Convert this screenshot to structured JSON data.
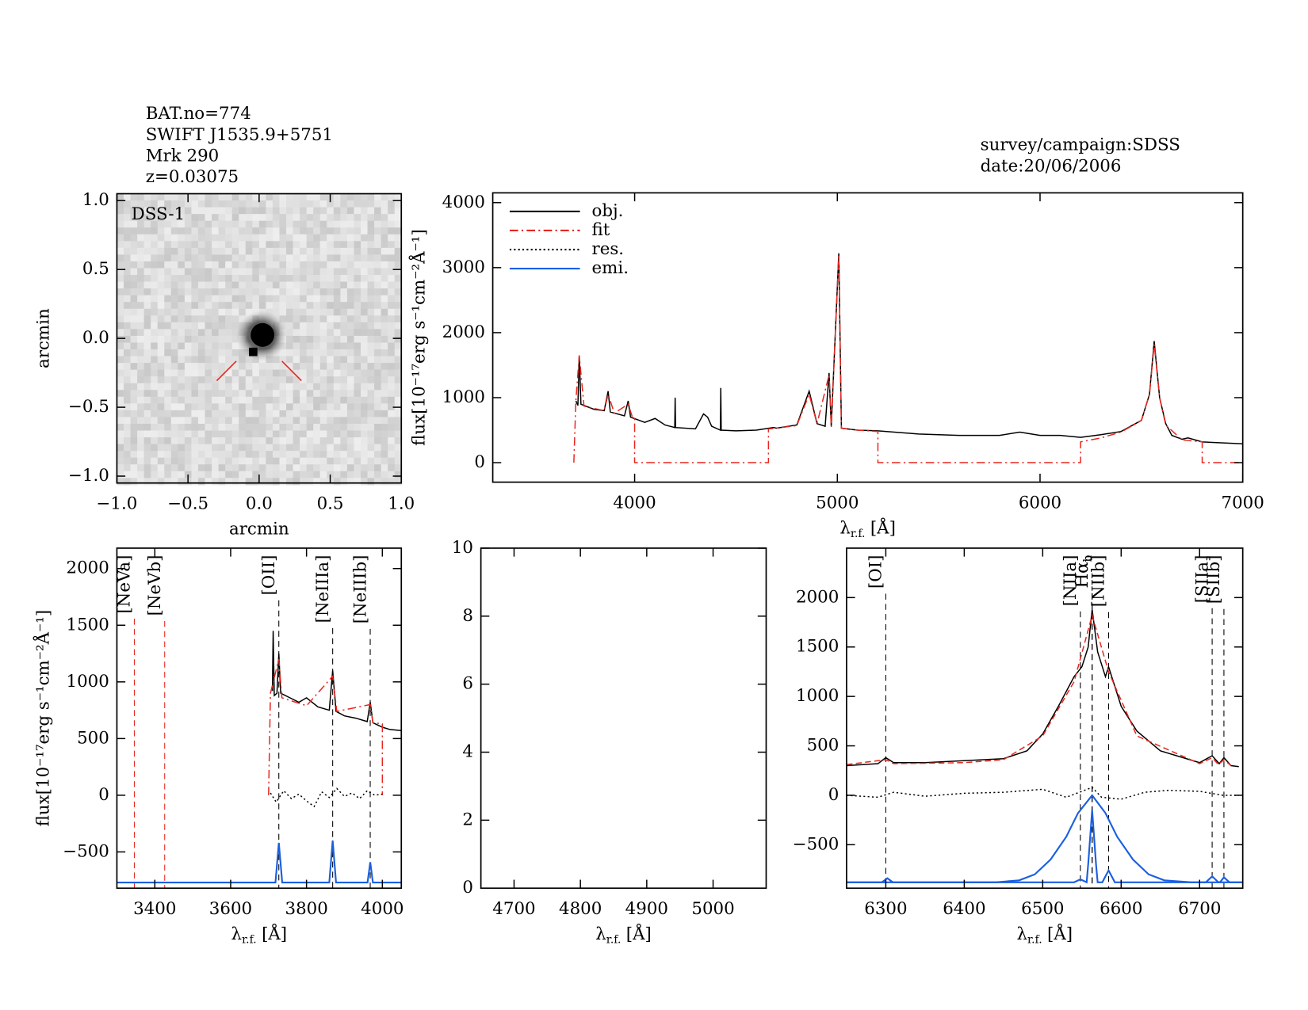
{
  "header": {
    "left": [
      "BAT.no=774",
      "SWIFT J1535.9+5751",
      "Mrk 290",
      "z=0.03075"
    ],
    "right": [
      "survey/campaign:SDSS",
      "date:20/06/2006"
    ]
  },
  "chart_data": [
    {
      "type": "image",
      "label": "DSS-1",
      "x_label": "arcmin",
      "y_label": "arcmin",
      "xlim": [
        -1.0,
        1.0
      ],
      "ylim": [
        -1.05,
        1.05
      ],
      "xticks": [
        {
          "value": -1,
          "label": "−1.0"
        },
        {
          "value": -0.5,
          "label": "−0.5"
        },
        {
          "value": 0,
          "label": "0.0"
        },
        0.5,
        {
          "value": 1,
          "label": "1.0"
        }
      ],
      "yticks": [
        {
          "value": -1,
          "label": "−1.0"
        },
        {
          "value": -0.5,
          "label": "−0.5"
        },
        {
          "value": 0,
          "label": "0.0"
        },
        0.5,
        {
          "value": 1,
          "label": "1.0"
        }
      ],
      "marker_color": "#e8261e"
    },
    {
      "type": "line",
      "y_label": "flux[10⁻¹⁷erg s⁻¹cm⁻²Å⁻¹]",
      "x_label": {
        "symbol": "λ",
        "sub": "r.f.",
        "unit": "[Å]"
      },
      "xlim": [
        3300,
        7000
      ],
      "ylim": [
        -300,
        4150
      ],
      "xticks": [
        4000,
        5000,
        6000,
        7000
      ],
      "yticks": [
        0,
        1000,
        2000,
        3000,
        4000
      ],
      "legend": [
        {
          "name": "obj.",
          "color": "#000000",
          "dash": "solid"
        },
        {
          "name": "fit",
          "color": "#e8261e",
          "dash": "dashdot"
        },
        {
          "name": "res.",
          "color": "#000000",
          "dash": "dotted"
        },
        {
          "name": "emi.",
          "color": "#1a5fe0",
          "dash": "solid"
        }
      ],
      "series": [
        {
          "color": "#000000",
          "dash": "solid",
          "x": [
            3710,
            3720,
            3727,
            3735,
            3750,
            3800,
            3850,
            3869,
            3880,
            3950,
            3968,
            3980,
            4050,
            4101,
            4150,
            4198,
            4200,
            4202,
            4300,
            4340,
            4360,
            4380,
            4423,
            4425,
            4427,
            4500,
            4600,
            4686,
            4700,
            4800,
            4861,
            4900,
            4940,
            4959,
            4970,
            5007,
            5020,
            5100,
            5200,
            5400,
            5600,
            5800,
            5900,
            6000,
            6100,
            6200,
            6300,
            6400,
            6500,
            6540,
            6563,
            6590,
            6620,
            6650,
            6700,
            6730,
            6800,
            7000
          ],
          "values": [
            950,
            880,
            1650,
            900,
            880,
            820,
            800,
            1100,
            780,
            720,
            950,
            700,
            620,
            680,
            580,
            540,
            1000,
            540,
            520,
            750,
            700,
            560,
            500,
            1150,
            500,
            490,
            500,
            540,
            530,
            580,
            1100,
            600,
            560,
            1380,
            560,
            3220,
            530,
            500,
            490,
            440,
            420,
            420,
            470,
            420,
            420,
            390,
            430,
            480,
            650,
            1050,
            1870,
            1000,
            600,
            420,
            360,
            380,
            320,
            290
          ]
        },
        {
          "color": "#e8261e",
          "dash": "dashdot",
          "x": [
            3700,
            3710,
            3727,
            3750,
            3850,
            3869,
            3900,
            3968,
            3990,
            4000,
            4000,
            4660,
            4660,
            4700,
            4800,
            4861,
            4900,
            4959,
            4970,
            5007,
            5020,
            5100,
            5200,
            5200,
            6200,
            6200,
            6300,
            6400,
            6500,
            6540,
            6563,
            6590,
            6620,
            6700,
            6800,
            6800,
            7000
          ],
          "values": [
            0,
            950,
            1650,
            870,
            800,
            1050,
            760,
            900,
            690,
            680,
            0,
            0,
            520,
            530,
            570,
            1050,
            600,
            1350,
            550,
            3200,
            530,
            500,
            480,
            0,
            0,
            320,
            380,
            470,
            650,
            1050,
            1820,
            1000,
            580,
            350,
            320,
            0,
            0
          ]
        }
      ]
    },
    {
      "type": "line",
      "y_label": "flux[10⁻¹⁷erg s⁻¹cm⁻²Å⁻¹]",
      "x_label": {
        "symbol": "λ",
        "sub": "r.f.",
        "unit": "[Å]"
      },
      "xlim": [
        3300,
        4050
      ],
      "ylim": [
        -820,
        2180
      ],
      "xticks": [
        3400,
        3600,
        3800,
        4000
      ],
      "yticks": [
        {
          "value": -500,
          "label": "−500"
        },
        0,
        500,
        1000,
        1500,
        2000
      ],
      "lines": [
        {
          "label": "[NeVa]",
          "x": 3346,
          "color": "#e8261e"
        },
        {
          "label": "[NeVb]",
          "x": 3426,
          "color": "#e8261e"
        },
        {
          "label": "[OII]",
          "x": 3727,
          "color": "#000000"
        },
        {
          "label": "[NeIIIa]",
          "x": 3869,
          "color": "#000000"
        },
        {
          "label": "[NeIIIb]",
          "x": 3968,
          "color": "#000000"
        }
      ],
      "series": [
        {
          "color": "#000000",
          "dash": "solid",
          "x": [
            3710,
            3712,
            3715,
            3722,
            3727,
            3732,
            3750,
            3780,
            3800,
            3830,
            3860,
            3869,
            3878,
            3900,
            3930,
            3960,
            3968,
            3975,
            4000,
            4020,
            4050
          ],
          "values": [
            920,
            1450,
            880,
            900,
            1250,
            900,
            870,
            820,
            860,
            780,
            750,
            1100,
            740,
            700,
            680,
            650,
            820,
            640,
            600,
            580,
            570
          ]
        },
        {
          "color": "#e8261e",
          "dash": "dashdot",
          "x": [
            3700,
            3705,
            3727,
            3735,
            3800,
            3869,
            3880,
            3968,
            3975,
            4000,
            4000
          ],
          "values": [
            0,
            900,
            1200,
            860,
            790,
            1050,
            740,
            800,
            640,
            630,
            0
          ]
        },
        {
          "color": "#000000",
          "dash": "dotted",
          "x": [
            3705,
            3720,
            3740,
            3760,
            3780,
            3800,
            3820,
            3840,
            3860,
            3880,
            3900,
            3920,
            3940,
            3960,
            3980,
            4000
          ],
          "values": [
            20,
            -60,
            40,
            -30,
            10,
            -50,
            -100,
            30,
            -20,
            60,
            -10,
            20,
            -30,
            40,
            0,
            10
          ]
        },
        {
          "color": "#1a5fe0",
          "dash": "solid",
          "x": [
            3300,
            3718,
            3727,
            3736,
            3860,
            3869,
            3878,
            3961,
            3968,
            3975,
            4050
          ],
          "values": [
            -770,
            -770,
            -420,
            -770,
            -770,
            -400,
            -770,
            -770,
            -590,
            -770,
            -770
          ]
        }
      ]
    },
    {
      "type": "line",
      "x_label": {
        "symbol": "λ",
        "sub": "r.f.",
        "unit": "[Å]"
      },
      "xlim": [
        4650,
        5080
      ],
      "ylim": [
        0,
        10
      ],
      "xticks": [
        4700,
        4800,
        4900,
        5000
      ],
      "yticks": [
        0,
        2,
        4,
        6,
        8,
        10
      ],
      "series": []
    },
    {
      "type": "line",
      "x_label": {
        "symbol": "λ",
        "sub": "r.f.",
        "unit": "[Å]"
      },
      "xlim": [
        6250,
        6755
      ],
      "ylim": [
        -940,
        2500
      ],
      "xticks": [
        6300,
        6400,
        6500,
        6600,
        6700
      ],
      "yticks": [
        {
          "value": -500,
          "label": "−500"
        },
        0,
        500,
        1000,
        1500,
        2000
      ],
      "lines": [
        {
          "label": "[OI]",
          "x": 6300,
          "color": "#000000"
        },
        {
          "label": "[NIIa]",
          "x": 6548,
          "color": "#000000"
        },
        {
          "label": "Hα",
          "sub": "b",
          "x": 6563,
          "color": "#000000"
        },
        {
          "label": "Hα",
          "sub": "n",
          "x": 6563,
          "color": "#000000"
        },
        {
          "label": "[NIIb]",
          "x": 6584,
          "color": "#000000"
        },
        {
          "label": "[SIIa]",
          "x": 6716,
          "color": "#000000"
        },
        {
          "label": "[SIIb]",
          "x": 6731,
          "color": "#000000"
        }
      ],
      "series": [
        {
          "color": "#000000",
          "dash": "solid",
          "x": [
            6250,
            6290,
            6300,
            6310,
            6350,
            6400,
            6450,
            6480,
            6500,
            6520,
            6540,
            6550,
            6558,
            6563,
            6570,
            6580,
            6584,
            6590,
            6600,
            6620,
            6650,
            6700,
            6716,
            6725,
            6731,
            6740,
            6750
          ],
          "values": [
            300,
            320,
            380,
            330,
            330,
            350,
            370,
            450,
            620,
            900,
            1200,
            1300,
            1500,
            1880,
            1450,
            1200,
            1300,
            1150,
            900,
            650,
            450,
            330,
            400,
            320,
            380,
            300,
            290
          ]
        },
        {
          "color": "#e8261e",
          "dash": "dashed",
          "x": [
            6250,
            6300,
            6310,
            6400,
            6450,
            6500,
            6540,
            6563,
            6584,
            6620,
            6700,
            6716,
            6724,
            6731,
            6740
          ],
          "values": [
            310,
            360,
            320,
            330,
            360,
            600,
            1150,
            1820,
            1250,
            600,
            320,
            380,
            310,
            360,
            300
          ]
        },
        {
          "color": "#000000",
          "dash": "dotted",
          "x": [
            6250,
            6290,
            6310,
            6350,
            6400,
            6450,
            6500,
            6530,
            6550,
            6563,
            6575,
            6600,
            6630,
            6660,
            6700,
            6730,
            6750
          ],
          "values": [
            0,
            -20,
            30,
            -10,
            20,
            30,
            60,
            -20,
            40,
            80,
            -20,
            -40,
            30,
            50,
            40,
            0,
            0
          ]
        },
        {
          "color": "#1a5fe0",
          "dash": "solid",
          "x": [
            6250,
            6440,
            6470,
            6490,
            6510,
            6530,
            6545,
            6563,
            6580,
            6595,
            6615,
            6635,
            6655,
            6690,
            6755
          ],
          "values": [
            -880,
            -880,
            -860,
            -800,
            -650,
            -420,
            -180,
            0,
            -180,
            -420,
            -650,
            -800,
            -860,
            -880,
            -880
          ]
        },
        {
          "color": "#1a5fe0",
          "dash": "solid",
          "x": [
            6250,
            6295,
            6302,
            6309,
            6540,
            6548,
            6556,
            6558,
            6563,
            6568,
            6570,
            6576,
            6584,
            6592,
            6708,
            6716,
            6724,
            6726,
            6731,
            6738,
            6755
          ],
          "values": [
            -880,
            -880,
            -840,
            -880,
            -880,
            -850,
            -880,
            -700,
            -150,
            -700,
            -880,
            -880,
            -760,
            -880,
            -880,
            -820,
            -880,
            -880,
            -830,
            -880,
            -880
          ]
        }
      ]
    }
  ]
}
